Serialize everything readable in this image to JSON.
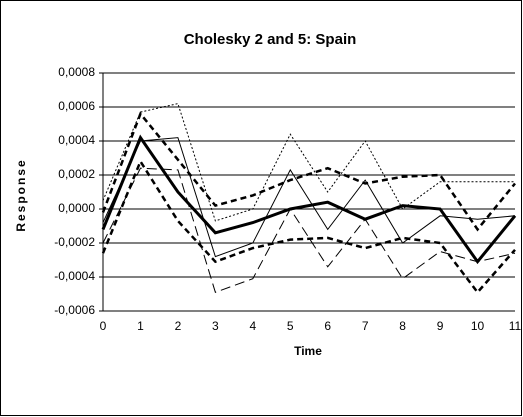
{
  "chart_data": {
    "type": "line",
    "title": "Cholesky 2 and 5: Spain",
    "x_label": "Time",
    "y_label": "Response",
    "x": [
      0,
      1,
      2,
      3,
      4,
      5,
      6,
      7,
      8,
      9,
      10,
      11
    ],
    "xlim": [
      0,
      11
    ],
    "xticks": [
      0,
      1,
      2,
      3,
      4,
      5,
      6,
      7,
      8,
      9,
      10,
      11
    ],
    "ylim": [
      -0.0006,
      0.0008
    ],
    "yticks": [
      {
        "value": -0.0006,
        "label": "-0,0006"
      },
      {
        "value": -0.0004,
        "label": "-0,0004"
      },
      {
        "value": -0.0002,
        "label": "-0,0002"
      },
      {
        "value": 0,
        "label": "0,0000"
      },
      {
        "value": 0.0002,
        "label": "0,0002"
      },
      {
        "value": 0.0004,
        "label": "0,0004"
      },
      {
        "value": 0.0006,
        "label": "0,0006"
      },
      {
        "value": 0.0008,
        "label": "0,0008"
      }
    ],
    "grid": true,
    "series": [
      {
        "color": "#000000",
        "style": "solid-thick",
        "values": [
          -0.00012,
          0.00042,
          0.0001,
          -0.00014,
          -8e-05,
          0.0,
          4e-05,
          -6e-05,
          2e-05,
          0.0,
          -0.00031,
          -4e-05
        ]
      },
      {
        "color": "#000000",
        "style": "dashed-thick",
        "values": [
          -2e-05,
          0.00056,
          0.00029,
          2e-05,
          8e-05,
          0.00017,
          0.00024,
          0.00015,
          0.00019,
          0.0002,
          -0.00012,
          0.00015
        ]
      },
      {
        "color": "#000000",
        "style": "dashed-thick",
        "values": [
          -0.00026,
          0.00028,
          -7e-05,
          -0.00031,
          -0.00023,
          -0.00018,
          -0.00017,
          -0.00023,
          -0.00017,
          -0.0002,
          -0.00049,
          -0.00024
        ]
      },
      {
        "color": "#000000",
        "style": "solid",
        "values": [
          -8e-05,
          0.0004,
          0.00042,
          -0.00028,
          -0.0002,
          0.00023,
          -0.00012,
          0.00017,
          -0.0002,
          -4e-05,
          -6e-05,
          -4e-05
        ]
      },
      {
        "color": "#000000",
        "style": "dotted",
        "values": [
          5e-05,
          0.00057,
          0.00062,
          -7e-05,
          0.0,
          0.00044,
          0.0001,
          0.0004,
          0.0,
          0.00016,
          0.00016,
          0.00016
        ]
      },
      {
        "color": "#000000",
        "style": "dashed-long",
        "values": [
          -0.0002,
          0.00024,
          0.00023,
          -0.00049,
          -0.00041,
          0.0,
          -0.00034,
          -6e-05,
          -0.00041,
          -0.00025,
          -0.00031,
          -0.00026
        ]
      }
    ]
  }
}
